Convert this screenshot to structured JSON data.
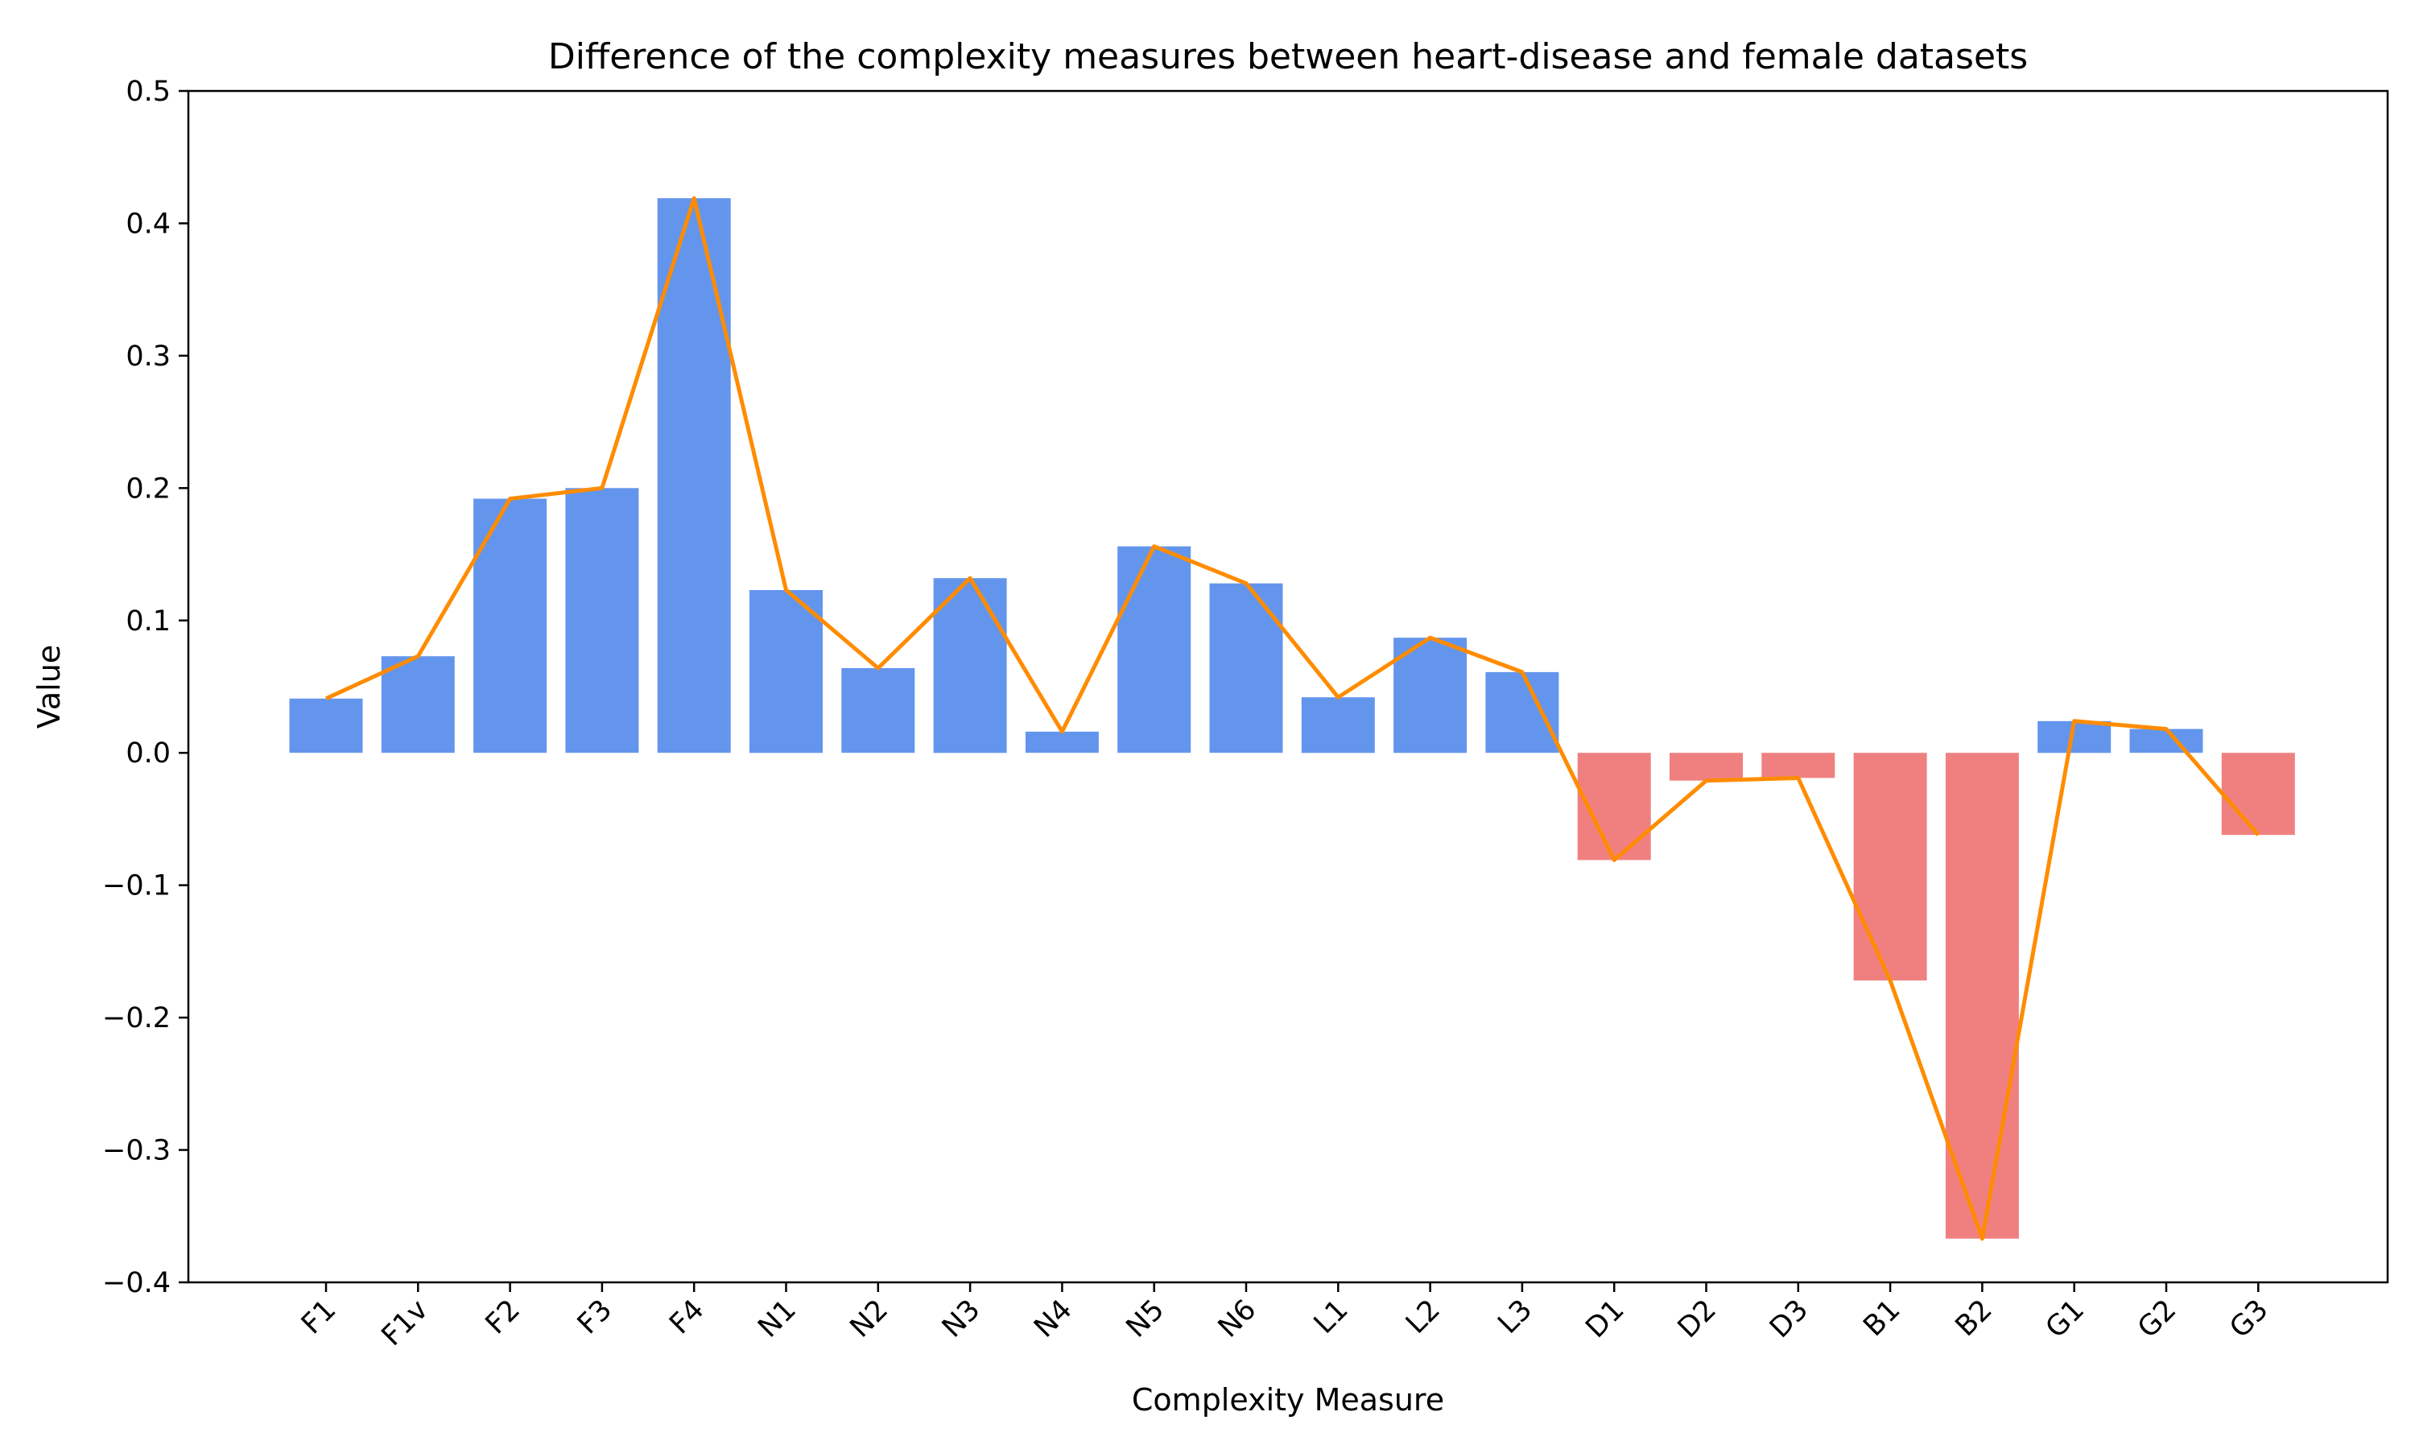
{
  "chart_data": {
    "type": "bar",
    "title": "Difference of the complexity measures between heart-disease and female datasets",
    "xlabel": "Complexity Measure",
    "ylabel": "Value",
    "ylim": [
      -0.4,
      0.5
    ],
    "yticks": [
      0.5,
      0.4,
      0.3,
      0.2,
      0.1,
      0.0,
      -0.1,
      -0.2,
      -0.3,
      -0.4
    ],
    "ytick_labels": [
      "0.5",
      "0.4",
      "0.3",
      "0.2",
      "0.1",
      "0.0",
      "−0.1",
      "−0.2",
      "−0.3",
      "−0.4"
    ],
    "categories": [
      "F1",
      "F1v",
      "F2",
      "F3",
      "F4",
      "N1",
      "N2",
      "N3",
      "N4",
      "N5",
      "N6",
      "L1",
      "L2",
      "L3",
      "D1",
      "D2",
      "D3",
      "B1",
      "B2",
      "G1",
      "G2",
      "G3"
    ],
    "values": [
      0.041,
      0.073,
      0.192,
      0.2,
      0.419,
      0.123,
      0.064,
      0.132,
      0.016,
      0.156,
      0.128,
      0.042,
      0.087,
      0.061,
      -0.081,
      -0.021,
      -0.019,
      -0.172,
      -0.367,
      0.024,
      0.018,
      -0.062
    ],
    "overlay_line": true,
    "grid": false,
    "colors": {
      "positive_bar": "#6495ED",
      "negative_bar": "#F08080",
      "line": "#FF8C00"
    }
  }
}
